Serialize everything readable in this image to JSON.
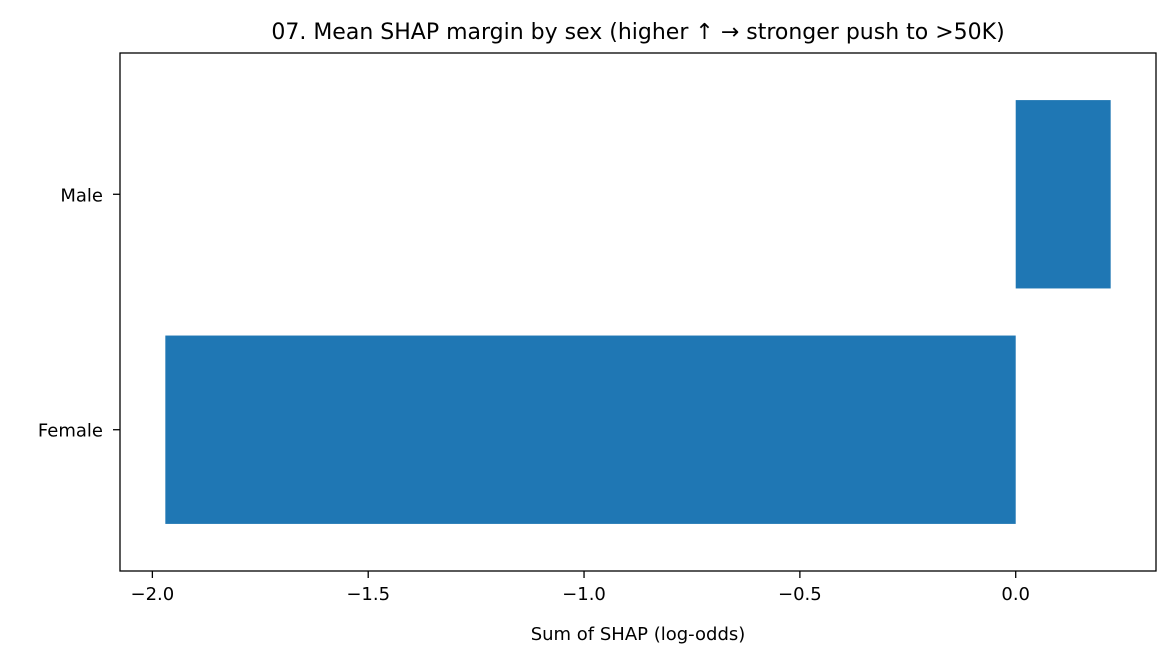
{
  "chart_data": {
    "type": "bar",
    "orientation": "horizontal",
    "title": "07. Mean SHAP margin by sex (higher ↑ → stronger push to >50K)",
    "xlabel": "Sum of SHAP (log-odds)",
    "ylabel": "",
    "categories": [
      "Female",
      "Male"
    ],
    "values": [
      -1.97,
      0.22
    ],
    "xlim": [
      -2.075,
      0.325
    ],
    "xticks": [
      -2.0,
      -1.5,
      -1.0,
      -0.5,
      0.0
    ],
    "xtick_labels": [
      "−2.0",
      "−1.5",
      "−1.0",
      "−0.5",
      "0.0"
    ],
    "bar_color": "#1f77b4",
    "grid": false,
    "legend": "none"
  }
}
